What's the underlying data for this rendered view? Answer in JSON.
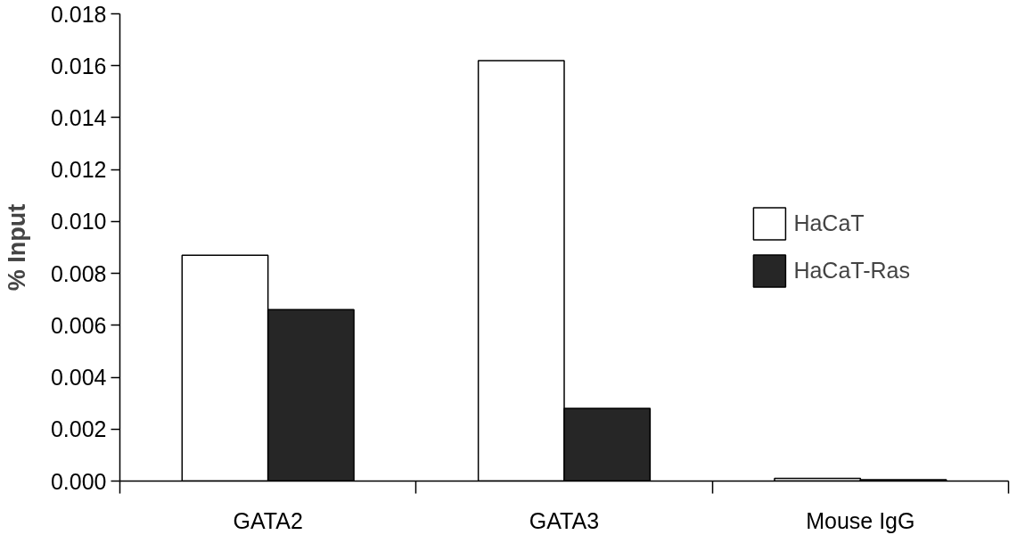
{
  "chart_data": {
    "type": "bar",
    "ylabel": "% Input",
    "categories": [
      "GATA2",
      "GATA3",
      "Mouse IgG"
    ],
    "series": [
      {
        "name": "HaCaT",
        "color": "#ffffff",
        "values": [
          0.0087,
          0.0162,
          0.0001
        ]
      },
      {
        "name": "HaCaT-Ras",
        "color": "#262626",
        "values": [
          0.0066,
          0.0028,
          5e-05
        ]
      }
    ],
    "ylim": [
      0,
      0.018
    ],
    "yticks": [
      {
        "value": 0,
        "label": "0.000"
      },
      {
        "value": 0.002,
        "label": "0.002"
      },
      {
        "value": 0.004,
        "label": "0.004"
      },
      {
        "value": 0.006,
        "label": "0.006"
      },
      {
        "value": 0.008,
        "label": "0.008"
      },
      {
        "value": 0.01,
        "label": "0.010"
      },
      {
        "value": 0.012,
        "label": "0.012"
      },
      {
        "value": 0.014,
        "label": "0.014"
      },
      {
        "value": 0.016,
        "label": "0.016"
      },
      {
        "value": 0.018,
        "label": "0.018"
      }
    ],
    "legend": "right",
    "grid": false
  }
}
